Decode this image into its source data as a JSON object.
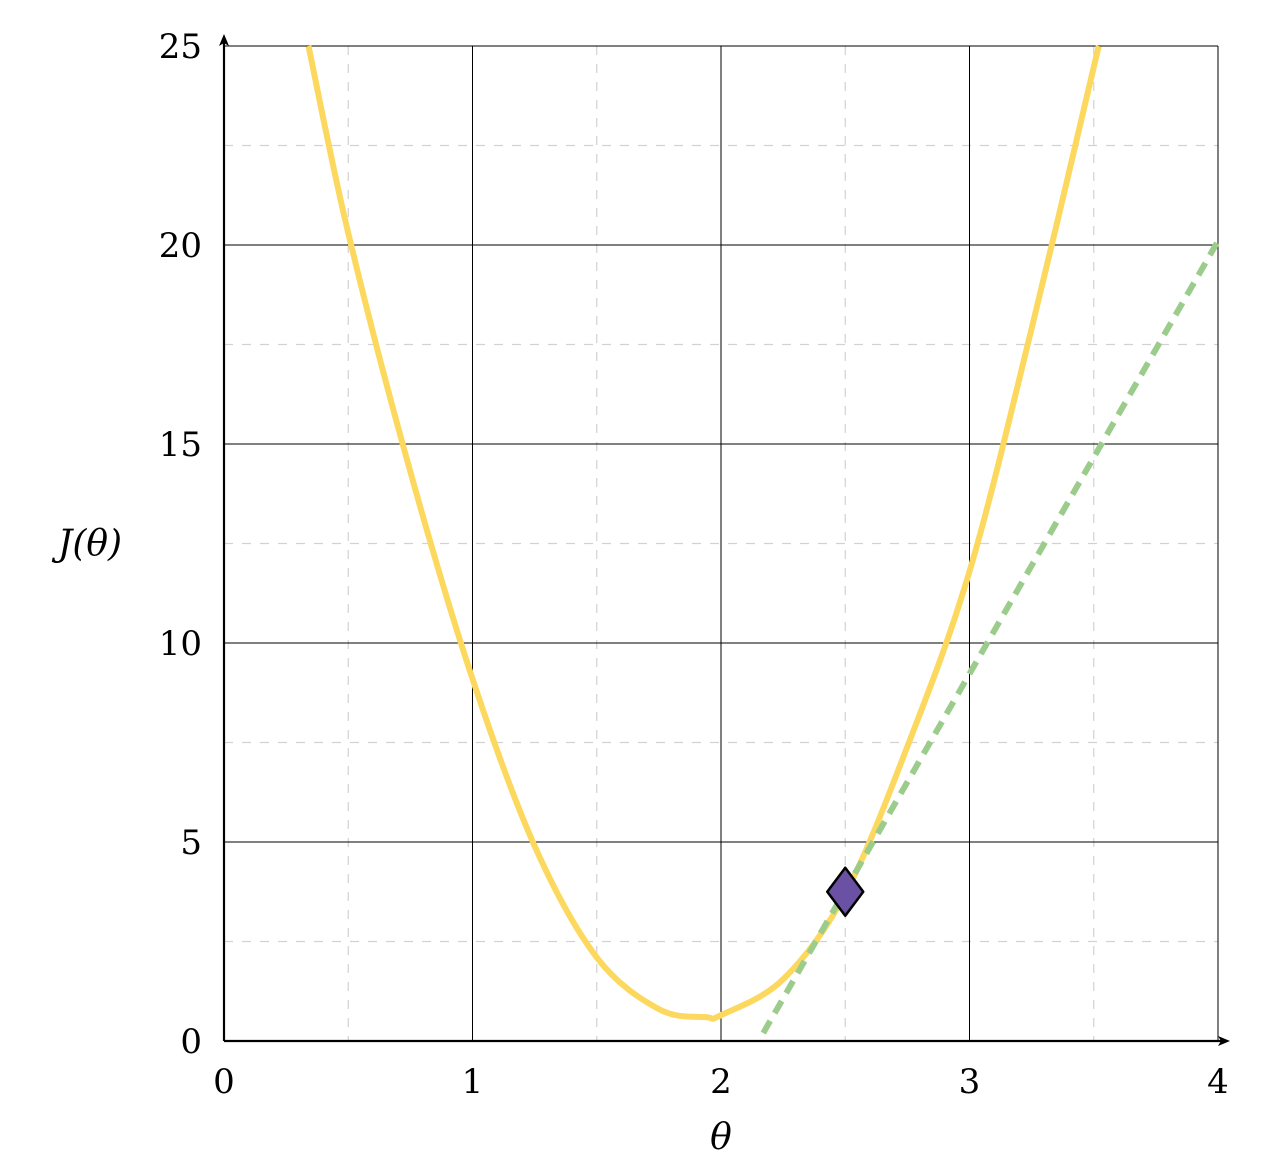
{
  "chart_data": {
    "type": "line",
    "xlabel": "θ",
    "ylabel": "J(θ)",
    "xlim": [
      0,
      4
    ],
    "ylim": [
      0,
      25
    ],
    "x_ticks": [
      "0",
      "1",
      "2",
      "3",
      "4"
    ],
    "y_ticks": [
      "0",
      "5",
      "10",
      "15",
      "20",
      "25"
    ],
    "major_grid": true,
    "minor_grid_dashed": true,
    "series": [
      {
        "kind": "curve",
        "color": "#fcd95e",
        "style": "solid",
        "x": [
          0.34,
          0.5,
          0.75,
          1.0,
          1.25,
          1.5,
          1.75,
          1.94,
          2.0,
          2.25,
          2.5,
          2.75,
          3.0,
          3.25,
          3.52
        ],
        "y": [
          25.0,
          20.3,
          14.3,
          9.1,
          4.9,
          2.1,
          0.8,
          0.6,
          0.65,
          1.55,
          3.7,
          7.4,
          11.8,
          17.9,
          25.0
        ]
      },
      {
        "kind": "tangent",
        "color": "#9ccc8c",
        "style": "dashed",
        "x": [
          2.17,
          4.0
        ],
        "y": [
          0.2,
          20.1
        ]
      }
    ],
    "points": [
      {
        "x": 2.5,
        "y": 3.75,
        "marker": "diamond",
        "color": "#6a51a3"
      }
    ]
  }
}
